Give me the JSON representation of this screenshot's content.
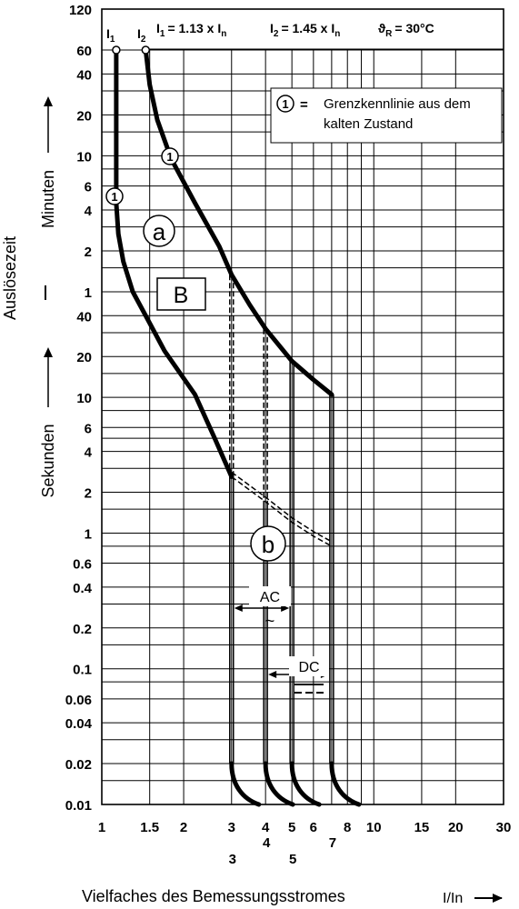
{
  "chart_data": {
    "type": "line",
    "title": "",
    "xlabel": "Vielfaches des Bemessungsstromes",
    "xunit": "I/In",
    "ylabel": "Auslösezeit",
    "ylabel_minutes": "Minuten",
    "ylabel_seconds": "Sekunden",
    "x_scale": "log",
    "y_scale": "log",
    "grid": true,
    "xlim": [
      1,
      30
    ],
    "x_ticks": [
      "1",
      "1.5",
      "2",
      "3",
      "4",
      "5",
      "6",
      "8",
      "10",
      "15",
      "20",
      "30"
    ],
    "x_extra_marks": [
      "1.5",
      "3",
      "4",
      "5",
      "7"
    ],
    "y_ticks_minutes": [
      "120",
      "60",
      "40",
      "20",
      "10",
      "6",
      "4",
      "2",
      "1"
    ],
    "y_ticks_seconds": [
      "40",
      "20",
      "10",
      "6",
      "4",
      "2",
      "1",
      "0.6",
      "0.4",
      "0.2",
      "0.1",
      "0.06",
      "0.04",
      "0.02",
      "0.01"
    ],
    "header": {
      "i1": "I",
      "i1_sub": "1",
      "i1_eq": "= 1.13 x I",
      "i2": "I",
      "i2_sub": "2",
      "i2_eq": "= 1.45 x I",
      "n_sub": "n",
      "temp": "ϑ",
      "temp_sub": "R",
      "temp_eq": "= 30°C"
    },
    "legend": {
      "marker": "1",
      "eq": "=",
      "line1": "Grenzkennlinie aus dem",
      "line2": "kalten Zustand"
    },
    "labels": {
      "region_a": "a",
      "curve_type": "B",
      "region_b": "b",
      "ac": "AC",
      "ac_symbol": "~",
      "dc": "DC",
      "cold_marker": "1"
    },
    "series": [
      {
        "points": [
          [
            1.13,
            3600
          ],
          [
            1.13,
            270
          ],
          [
            1.15,
            160
          ],
          [
            1.2,
            100
          ],
          [
            1.3,
            60
          ],
          [
            1.45,
            40
          ],
          [
            1.7,
            22
          ],
          [
            2.2,
            10.5
          ],
          [
            2.6,
            5
          ],
          [
            3,
            2.6
          ]
        ]
      },
      {
        "points": [
          [
            1.45,
            3600
          ],
          [
            1.5,
            2000
          ],
          [
            1.6,
            1100
          ],
          [
            1.8,
            570
          ],
          [
            2.2,
            270
          ],
          [
            2.7,
            130
          ],
          [
            3,
            80
          ],
          [
            3.5,
            48
          ],
          [
            4,
            32
          ],
          [
            5,
            18.5
          ],
          [
            6,
            13.5
          ],
          [
            7,
            10.5
          ]
        ]
      }
    ],
    "ac_range": [
      3,
      5
    ],
    "dc_range": [
      4,
      7
    ]
  }
}
